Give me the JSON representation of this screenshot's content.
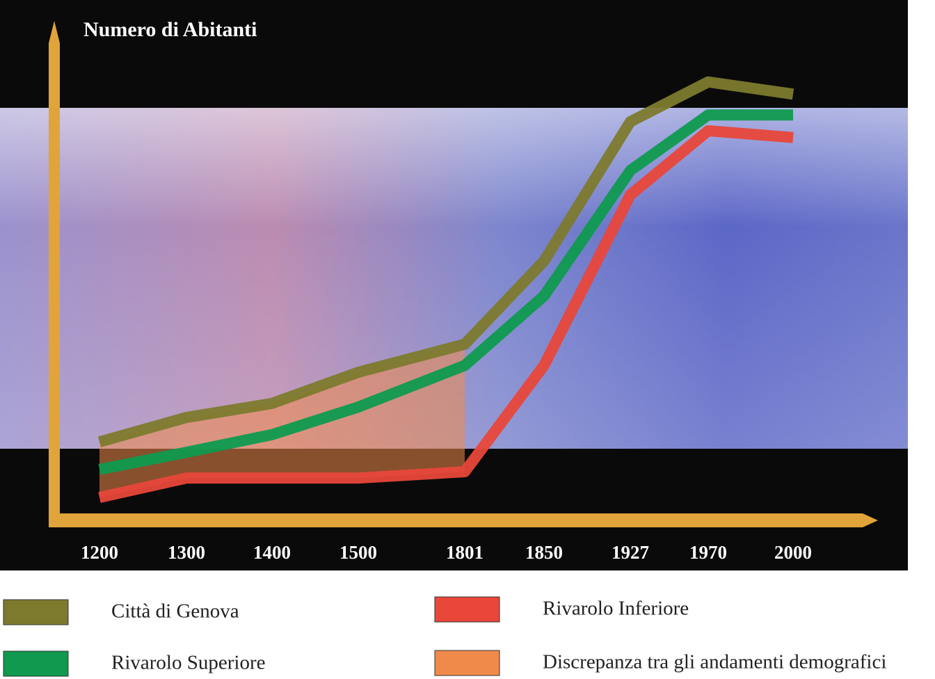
{
  "chart_data": {
    "type": "line",
    "title": "Numero di Abitanti",
    "categories": [
      "1200",
      "1300",
      "1400",
      "1500",
      "1801",
      "1850",
      "1927",
      "1970",
      "2000"
    ],
    "series": [
      {
        "name": "Città di Genova",
        "color": "#7d7a2e",
        "values": [
          16.9,
          22.3,
          25.4,
          32.3,
          38.5,
          56.9,
          87.7,
          96.5,
          93.8
        ]
      },
      {
        "name": "Rivarolo Superiore",
        "color": "#0f9a4f",
        "values": [
          10.8,
          14.6,
          18.5,
          24.6,
          33.8,
          49.2,
          76.9,
          89.2,
          89.2
        ]
      },
      {
        "name": "Rivarolo Inferiore",
        "color": "#e8473a",
        "values": [
          4.6,
          8.9,
          8.9,
          8.9,
          10.3,
          33.8,
          71.5,
          85.7,
          84.2
        ]
      }
    ],
    "shade": {
      "name": "Discrepanza tra gli andamenti demografici",
      "color": "#f08a4b",
      "categories": [
        0,
        4
      ]
    },
    "ylim": [
      0,
      100
    ],
    "grid": false
  }
}
